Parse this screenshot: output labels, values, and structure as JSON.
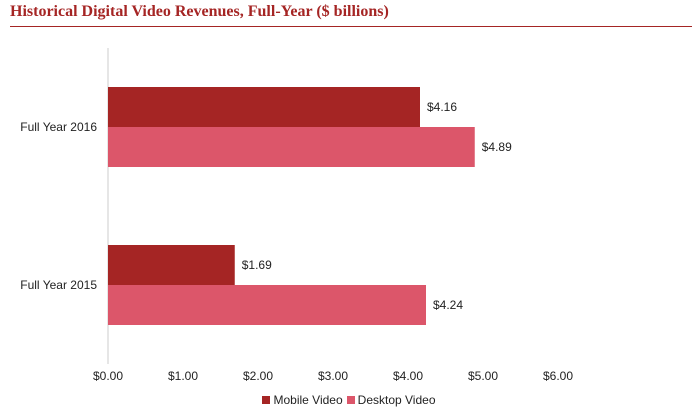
{
  "chart_data": {
    "type": "bar",
    "orientation": "horizontal",
    "title": "Historical Digital Video Revenues, Full-Year ($ billions)",
    "xlabel": "",
    "ylabel": "",
    "categories": [
      "Full Year 2016",
      "Full Year 2015"
    ],
    "series": [
      {
        "name": "Mobile Video",
        "values": [
          4.16,
          1.69
        ],
        "labels": [
          "$4.16",
          "$1.69"
        ],
        "color": "#a52524"
      },
      {
        "name": "Desktop Video",
        "values": [
          4.89,
          4.24
        ],
        "labels": [
          "$4.89",
          "$4.24"
        ],
        "color": "#dc566a"
      }
    ],
    "xlim": [
      0,
      6
    ],
    "xticks": [
      0,
      1,
      2,
      3,
      4,
      5,
      6
    ],
    "xtick_labels": [
      "$0.00",
      "$1.00",
      "$2.00",
      "$3.00",
      "$4.00",
      "$5.00",
      "$6.00"
    ],
    "grid": false,
    "legend_position": "bottom"
  },
  "colors": {
    "title": "#a52524",
    "axis": "#cccccc",
    "text": "#222222"
  }
}
